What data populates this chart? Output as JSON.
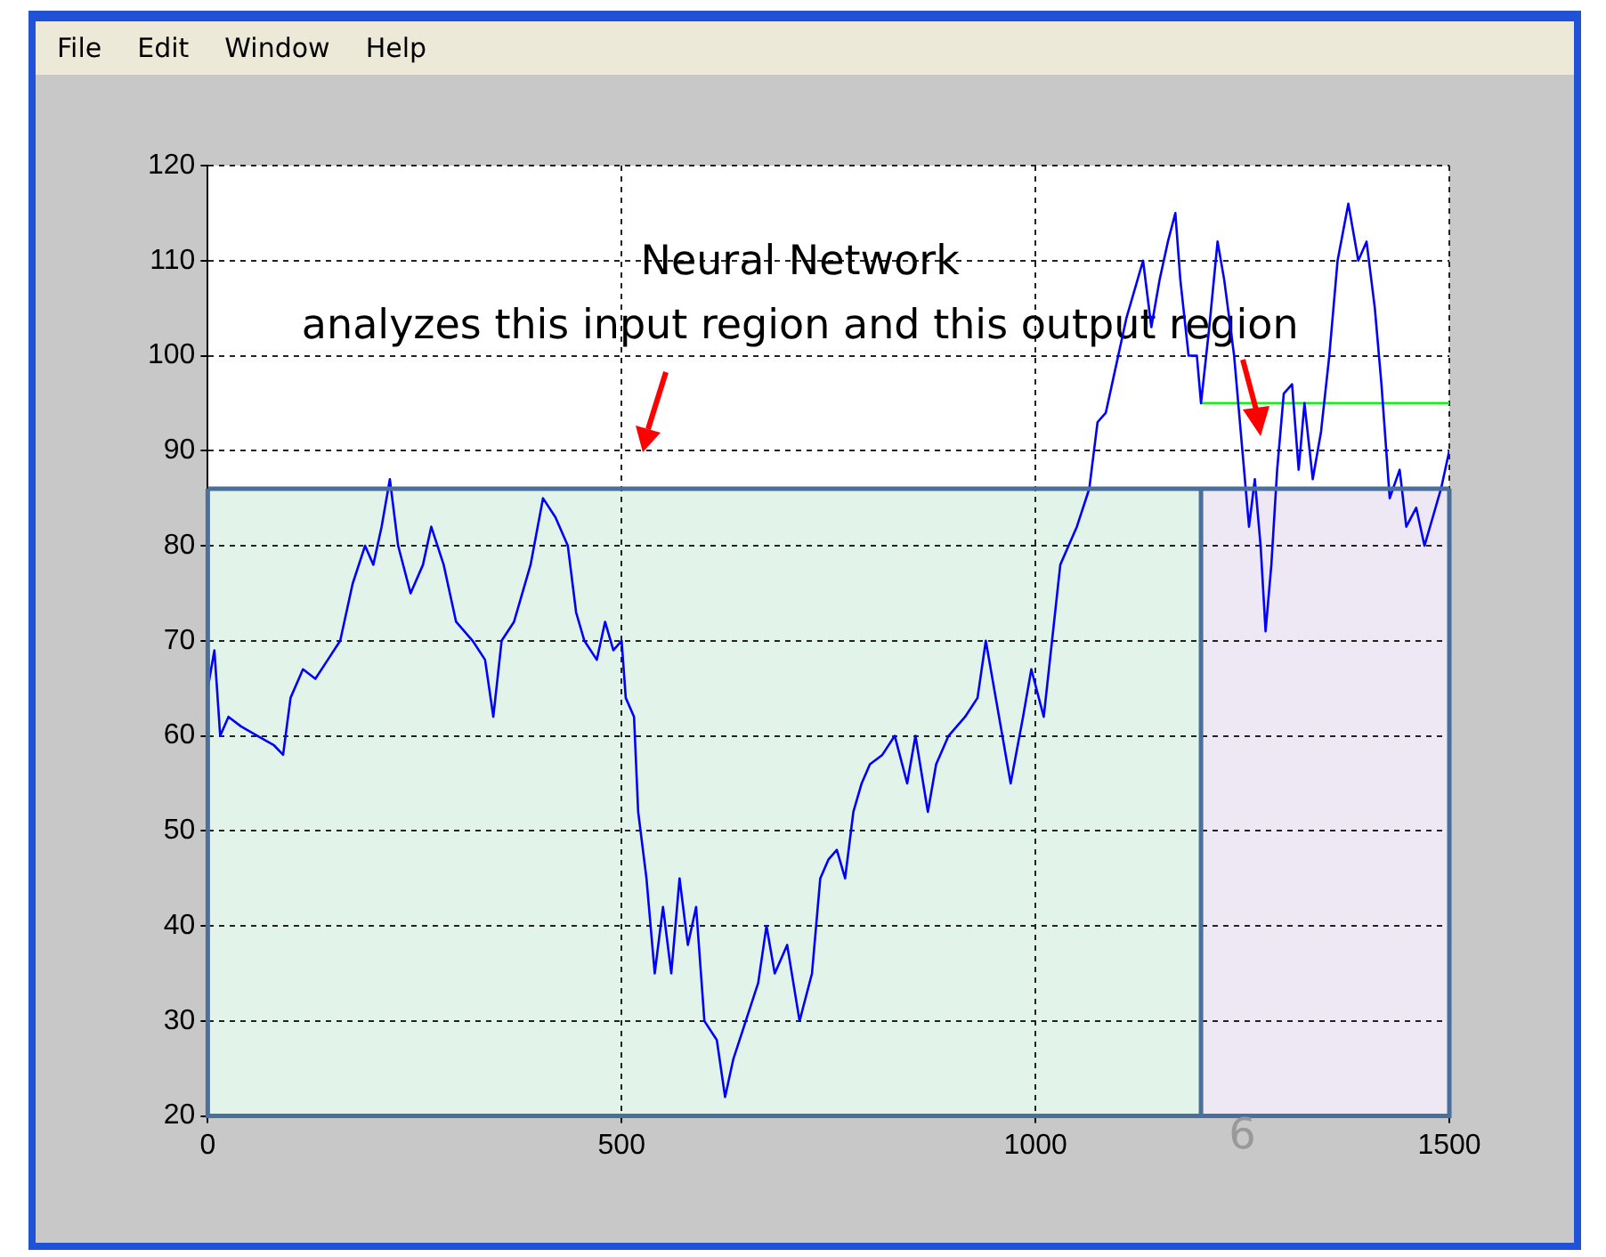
{
  "chart_data": {
    "type": "line",
    "x": [
      0,
      8,
      15,
      25,
      40,
      60,
      80,
      91,
      100,
      115,
      130,
      145,
      160,
      175,
      190,
      200,
      210,
      220,
      230,
      245,
      260,
      270,
      285,
      300,
      320,
      335,
      345,
      355,
      370,
      390,
      405,
      420,
      435,
      445,
      455,
      470,
      480,
      490,
      500,
      505,
      515,
      520,
      530,
      540,
      550,
      560,
      570,
      580,
      590,
      600,
      615,
      625,
      635,
      650,
      665,
      675,
      685,
      700,
      715,
      730,
      740,
      750,
      760,
      770,
      780,
      790,
      800,
      815,
      830,
      845,
      855,
      870,
      880,
      895,
      915,
      930,
      940,
      950,
      960,
      970,
      985,
      995,
      1010,
      1020,
      1030,
      1040,
      1050,
      1065,
      1075,
      1085,
      1095,
      1100,
      1110,
      1120,
      1130,
      1140,
      1150,
      1160,
      1169,
      1175,
      1185,
      1195,
      1200,
      1210,
      1220,
      1228,
      1240,
      1250,
      1258,
      1265,
      1272,
      1278,
      1285,
      1292,
      1300,
      1310,
      1318,
      1325,
      1335,
      1345,
      1355,
      1365,
      1378,
      1390,
      1400,
      1410,
      1418,
      1428,
      1440,
      1448,
      1460,
      1470,
      1480,
      1490,
      1500
    ],
    "series": [
      {
        "color": "#0000ff",
        "values": [
          65,
          69,
          60,
          62,
          61,
          60,
          59,
          58,
          64,
          67,
          66,
          68,
          70,
          76,
          80,
          78,
          82,
          87,
          80,
          75,
          78,
          82,
          78,
          72,
          70,
          68,
          62,
          70,
          72,
          78,
          85,
          83,
          80,
          73,
          70,
          68,
          72,
          69,
          70,
          64,
          62,
          52,
          45,
          35,
          42,
          35,
          45,
          38,
          42,
          30,
          28,
          22,
          26,
          30,
          34,
          40,
          35,
          38,
          30,
          35,
          45,
          47,
          48,
          45,
          52,
          55,
          57,
          58,
          60,
          55,
          60,
          52,
          57,
          60,
          62,
          64,
          70,
          65,
          60,
          55,
          62,
          67,
          62,
          70,
          78,
          80,
          82,
          86,
          93,
          94,
          98,
          100,
          104,
          107,
          110,
          103,
          108,
          112,
          115,
          108,
          100,
          100,
          95,
          103,
          112,
          108,
          100,
          90,
          82,
          87,
          80,
          71,
          78,
          88,
          96,
          97,
          88,
          95,
          87,
          92,
          100,
          110,
          116,
          110,
          112,
          105,
          97,
          85,
          88,
          82,
          84,
          80,
          83,
          86,
          90
        ]
      },
      {
        "color": "#00ff00",
        "x": [
          1200,
          1500
        ],
        "values": [
          95,
          95
        ]
      }
    ],
    "xlim": [
      0,
      1500
    ],
    "xticks": [
      0,
      500,
      {
        "value": 1000,
        "label": "1000"
      },
      {
        "value": 1500,
        "label": "1500"
      }
    ],
    "ylim": [
      20,
      120
    ],
    "yticks": [
      20,
      30,
      40,
      50,
      60,
      70,
      80,
      90,
      100,
      110,
      120
    ],
    "grid": true,
    "marker": "none",
    "line_style": "solid",
    "ref_lines": [
      {
        "axis": "y",
        "value": 86,
        "color": "#4a6f9a"
      },
      {
        "axis": "x",
        "value": 1200,
        "color": "#4a6f9a"
      }
    ],
    "bands": [
      {
        "axis": "x",
        "from": 0,
        "to": 1200,
        "color": "#e2f3ea"
      },
      {
        "axis": "x",
        "from": 1200,
        "to": 1500,
        "color": "#ede8f4"
      }
    ],
    "annotations": [
      "Neural Network\nanalyzes this input region and this output region",
      "6",
      "File",
      "Edit",
      "Window",
      "Help"
    ]
  }
}
